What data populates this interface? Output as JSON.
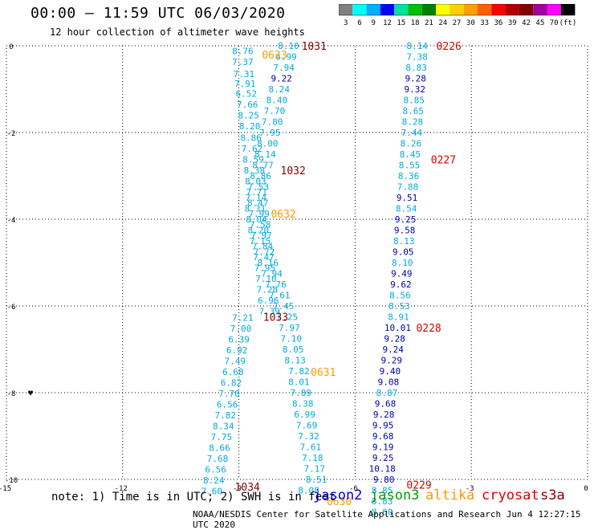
{
  "header": {
    "title": "00:00 – 11:59 UTC 06/03/2020",
    "subtitle": "12 hour collection of altimeter wave heights"
  },
  "legend": {
    "labels": [
      "3",
      "6",
      "9",
      "12",
      "15",
      "18",
      "21",
      "24",
      "27",
      "30",
      "33",
      "36",
      "39",
      "42",
      "45",
      "70",
      "(ft)"
    ],
    "colors": [
      "#808080",
      "#00ffff",
      "#00b0ff",
      "#0000ff",
      "#00e0a0",
      "#00c000",
      "#008000",
      "#ffff00",
      "#ffd000",
      "#ffa000",
      "#ff6000",
      "#ff0000",
      "#b00000",
      "#800000",
      "#a000a0",
      "#ff00ff",
      "#000000"
    ]
  },
  "note": "note: 1) Time is in UTC; 2) SWH is in feet",
  "satellites": [
    {
      "name": "jason2",
      "color": "#0000cc"
    },
    {
      "name": "jason3",
      "color": "#00a000"
    },
    {
      "name": "altika",
      "color": "#ff9900"
    },
    {
      "name": "cryosat",
      "color": "#dd0000"
    },
    {
      "name": "s3a",
      "color": "#880000"
    }
  ],
  "footer": "NOAA/NESDIS Center for Satellite Applications and Research   Jun  4 12:27:15 UTC 2020",
  "chart_data": {
    "type": "scatter",
    "xlim": [
      -15,
      0
    ],
    "ylim": [
      -10,
      0
    ],
    "x_ticks": [
      "-15",
      "-12",
      "-9",
      "-6",
      "-3",
      "0"
    ],
    "y_ticks": [
      "0",
      "-2",
      "-4",
      "-6",
      "-8",
      "-10"
    ],
    "grid": true,
    "colors": {
      "cyan": "#00aadd",
      "navy": "#0000aa"
    },
    "series": [
      {
        "points": [
          {
            "x": -8.9,
            "y": -0.12,
            "v": "8.76",
            "c": "cyan"
          },
          {
            "x": -8.9,
            "y": -0.37,
            "v": "7.37",
            "c": "cyan"
          },
          {
            "x": -8.87,
            "y": -0.65,
            "v": "7.31",
            "c": "cyan"
          },
          {
            "x": -8.84,
            "y": -0.87,
            "v": "7.91",
            "c": "cyan"
          },
          {
            "x": -8.81,
            "y": -1.1,
            "v": "6.52",
            "c": "cyan"
          },
          {
            "x": -8.78,
            "y": -1.35,
            "v": "7.66",
            "c": "cyan"
          },
          {
            "x": -8.75,
            "y": -1.6,
            "v": "8.25",
            "c": "cyan"
          },
          {
            "x": -8.72,
            "y": -1.85,
            "v": "8.20",
            "c": "cyan"
          },
          {
            "x": -8.69,
            "y": -2.12,
            "v": "8.86",
            "c": "cyan"
          },
          {
            "x": -8.66,
            "y": -2.37,
            "v": "7.62",
            "c": "cyan"
          },
          {
            "x": -8.63,
            "y": -2.62,
            "v": "8.59",
            "c": "cyan"
          },
          {
            "x": -8.6,
            "y": -2.87,
            "v": "8.38",
            "c": "cyan"
          },
          {
            "x": -8.57,
            "y": -3.12,
            "v": "8.03",
            "c": "cyan"
          },
          {
            "x": -8.54,
            "y": -3.37,
            "v": "7.71",
            "c": "cyan"
          },
          {
            "x": -8.51,
            "y": -3.62,
            "v": "8.47",
            "c": "cyan"
          },
          {
            "x": -8.48,
            "y": -3.87,
            "v": "7.99",
            "c": "cyan"
          },
          {
            "x": -8.45,
            "y": -4.12,
            "v": "7.58",
            "c": "cyan"
          },
          {
            "x": -8.42,
            "y": -4.37,
            "v": "7.97",
            "c": "cyan"
          },
          {
            "x": -8.39,
            "y": -4.62,
            "v": "7.84",
            "c": "cyan"
          },
          {
            "x": -8.36,
            "y": -4.87,
            "v": "7.47",
            "c": "cyan"
          },
          {
            "x": -8.33,
            "y": -5.12,
            "v": "7.95",
            "c": "cyan"
          },
          {
            "x": -8.3,
            "y": -5.37,
            "v": "7.10",
            "c": "cyan"
          },
          {
            "x": -8.27,
            "y": -5.62,
            "v": "7.28",
            "c": "cyan"
          },
          {
            "x": -8.24,
            "y": -5.87,
            "v": "6.96",
            "c": "cyan"
          },
          {
            "x": -8.21,
            "y": -6.12,
            "v": "7.39",
            "c": "cyan"
          },
          {
            "x": -8.9,
            "y": -6.27,
            "v": "7.21",
            "c": "cyan"
          },
          {
            "x": -8.95,
            "y": -6.52,
            "v": "7.00",
            "c": "cyan"
          },
          {
            "x": -9.0,
            "y": -6.77,
            "v": "6.39",
            "c": "cyan"
          },
          {
            "x": -9.05,
            "y": -7.02,
            "v": "6.92",
            "c": "cyan"
          },
          {
            "x": -9.1,
            "y": -7.27,
            "v": "7.49",
            "c": "cyan"
          },
          {
            "x": -9.15,
            "y": -7.52,
            "v": "6.68",
            "c": "cyan"
          },
          {
            "x": -9.2,
            "y": -7.77,
            "v": "6.82",
            "c": "cyan"
          },
          {
            "x": -9.25,
            "y": -8.02,
            "v": "7.70",
            "c": "cyan"
          },
          {
            "x": -9.3,
            "y": -8.27,
            "v": "6.56",
            "c": "cyan"
          },
          {
            "x": -9.35,
            "y": -8.52,
            "v": "7.82",
            "c": "cyan"
          },
          {
            "x": -9.4,
            "y": -8.77,
            "v": "8.34",
            "c": "cyan"
          },
          {
            "x": -9.45,
            "y": -9.02,
            "v": "7.75",
            "c": "cyan"
          },
          {
            "x": -9.5,
            "y": -9.27,
            "v": "8.66",
            "c": "cyan"
          },
          {
            "x": -9.55,
            "y": -9.52,
            "v": "7.68",
            "c": "cyan"
          },
          {
            "x": -9.6,
            "y": -9.77,
            "v": "6.56",
            "c": "cyan"
          },
          {
            "x": -9.65,
            "y": -10.02,
            "v": "8.24",
            "c": "cyan"
          },
          {
            "x": -9.7,
            "y": -10.27,
            "v": "7.60",
            "c": "cyan"
          }
        ]
      },
      {
        "points": [
          {
            "x": -7.72,
            "y": 0.0,
            "v": "8.10",
            "c": "cyan"
          },
          {
            "x": -7.78,
            "y": -0.25,
            "v": "6.99",
            "c": "cyan"
          },
          {
            "x": -7.84,
            "y": -0.5,
            "v": "7.94",
            "c": "cyan"
          },
          {
            "x": -7.9,
            "y": -0.75,
            "v": "9.22",
            "c": "navy"
          },
          {
            "x": -7.96,
            "y": -1.0,
            "v": "8.24",
            "c": "cyan"
          },
          {
            "x": -8.02,
            "y": -1.25,
            "v": "8.40",
            "c": "cyan"
          },
          {
            "x": -8.08,
            "y": -1.5,
            "v": "7.70",
            "c": "cyan"
          },
          {
            "x": -8.14,
            "y": -1.75,
            "v": "7.80",
            "c": "cyan"
          },
          {
            "x": -8.2,
            "y": -2.0,
            "v": "7.95",
            "c": "cyan"
          },
          {
            "x": -8.26,
            "y": -2.25,
            "v": "8.00",
            "c": "cyan"
          },
          {
            "x": -8.32,
            "y": -2.5,
            "v": "8.14",
            "c": "cyan"
          },
          {
            "x": -8.38,
            "y": -2.75,
            "v": "8.77",
            "c": "cyan"
          },
          {
            "x": -8.44,
            "y": -3.0,
            "v": "8.86",
            "c": "cyan"
          },
          {
            "x": -8.5,
            "y": -3.25,
            "v": "7.53",
            "c": "cyan"
          },
          {
            "x": -8.56,
            "y": -3.5,
            "v": "7.14",
            "c": "cyan"
          },
          {
            "x": -8.58,
            "y": -3.75,
            "v": "8.31",
            "c": "cyan"
          },
          {
            "x": -8.55,
            "y": -4.0,
            "v": "8.04",
            "c": "cyan"
          },
          {
            "x": -8.5,
            "y": -4.25,
            "v": "8.20",
            "c": "cyan"
          },
          {
            "x": -8.45,
            "y": -4.5,
            "v": "7.15",
            "c": "cyan"
          },
          {
            "x": -8.35,
            "y": -4.75,
            "v": "7.72",
            "c": "cyan"
          },
          {
            "x": -8.25,
            "y": -5.0,
            "v": "8.16",
            "c": "cyan"
          },
          {
            "x": -8.15,
            "y": -5.25,
            "v": "7.94",
            "c": "cyan"
          },
          {
            "x": -8.05,
            "y": -5.5,
            "v": "7.76",
            "c": "cyan"
          },
          {
            "x": -7.95,
            "y": -5.75,
            "v": "7.61",
            "c": "cyan"
          },
          {
            "x": -7.85,
            "y": -6.0,
            "v": "7.45",
            "c": "cyan"
          },
          {
            "x": -7.75,
            "y": -6.25,
            "v": "7.25",
            "c": "cyan"
          },
          {
            "x": -7.7,
            "y": -6.5,
            "v": "7.97",
            "c": "cyan"
          },
          {
            "x": -7.65,
            "y": -6.75,
            "v": "7.10",
            "c": "cyan"
          },
          {
            "x": -7.6,
            "y": -7.0,
            "v": "8.05",
            "c": "cyan"
          },
          {
            "x": -7.55,
            "y": -7.25,
            "v": "8.13",
            "c": "cyan"
          },
          {
            "x": -7.45,
            "y": -7.5,
            "v": "7.82",
            "c": "cyan"
          },
          {
            "x": -7.45,
            "y": -7.75,
            "v": "8.01",
            "c": "cyan"
          },
          {
            "x": -7.4,
            "y": -8.0,
            "v": "7.89",
            "c": "cyan"
          },
          {
            "x": -7.35,
            "y": -8.25,
            "v": "8.38",
            "c": "cyan"
          },
          {
            "x": -7.3,
            "y": -8.5,
            "v": "6.99",
            "c": "cyan"
          },
          {
            "x": -7.25,
            "y": -8.75,
            "v": "7.69",
            "c": "cyan"
          },
          {
            "x": -7.2,
            "y": -9.0,
            "v": "7.32",
            "c": "cyan"
          },
          {
            "x": -7.15,
            "y": -9.25,
            "v": "7.61",
            "c": "cyan"
          },
          {
            "x": -7.1,
            "y": -9.5,
            "v": "7.18",
            "c": "cyan"
          },
          {
            "x": -7.05,
            "y": -9.75,
            "v": "7.17",
            "c": "cyan"
          },
          {
            "x": -7.0,
            "y": -10.0,
            "v": "8.51",
            "c": "cyan"
          },
          {
            "x": -7.2,
            "y": -10.25,
            "v": "8.08",
            "c": "cyan"
          }
        ]
      },
      {
        "points": [
          {
            "x": -4.4,
            "y": 0.0,
            "v": "8.14",
            "c": "cyan"
          },
          {
            "x": -4.4,
            "y": -0.25,
            "v": "7.38",
            "c": "cyan"
          },
          {
            "x": -4.42,
            "y": -0.5,
            "v": "8.83",
            "c": "cyan"
          },
          {
            "x": -4.44,
            "y": -0.75,
            "v": "9.28",
            "c": "navy"
          },
          {
            "x": -4.46,
            "y": -1.0,
            "v": "9.32",
            "c": "navy"
          },
          {
            "x": -4.48,
            "y": -1.25,
            "v": "8.85",
            "c": "cyan"
          },
          {
            "x": -4.5,
            "y": -1.5,
            "v": "8.65",
            "c": "cyan"
          },
          {
            "x": -4.52,
            "y": -1.75,
            "v": "8.28",
            "c": "cyan"
          },
          {
            "x": -4.54,
            "y": -2.0,
            "v": "7.44",
            "c": "cyan"
          },
          {
            "x": -4.56,
            "y": -2.25,
            "v": "8.26",
            "c": "cyan"
          },
          {
            "x": -4.58,
            "y": -2.5,
            "v": "8.45",
            "c": "cyan"
          },
          {
            "x": -4.6,
            "y": -2.75,
            "v": "8.55",
            "c": "cyan"
          },
          {
            "x": -4.62,
            "y": -3.0,
            "v": "8.36",
            "c": "cyan"
          },
          {
            "x": -4.64,
            "y": -3.25,
            "v": "7.88",
            "c": "cyan"
          },
          {
            "x": -4.66,
            "y": -3.5,
            "v": "9.51",
            "c": "navy"
          },
          {
            "x": -4.68,
            "y": -3.75,
            "v": "8.54",
            "c": "cyan"
          },
          {
            "x": -4.7,
            "y": -4.0,
            "v": "9.25",
            "c": "navy"
          },
          {
            "x": -4.72,
            "y": -4.25,
            "v": "9.58",
            "c": "navy"
          },
          {
            "x": -4.74,
            "y": -4.5,
            "v": "8.13",
            "c": "cyan"
          },
          {
            "x": -4.76,
            "y": -4.75,
            "v": "9.05",
            "c": "navy"
          },
          {
            "x": -4.78,
            "y": -5.0,
            "v": "8.10",
            "c": "cyan"
          },
          {
            "x": -4.8,
            "y": -5.25,
            "v": "9.49",
            "c": "navy"
          },
          {
            "x": -4.82,
            "y": -5.5,
            "v": "9.62",
            "c": "navy"
          },
          {
            "x": -4.84,
            "y": -5.75,
            "v": "8.56",
            "c": "cyan"
          },
          {
            "x": -4.86,
            "y": -6.0,
            "v": "8.53",
            "c": "cyan"
          },
          {
            "x": -4.88,
            "y": -6.25,
            "v": "8.91",
            "c": "cyan"
          },
          {
            "x": -4.9,
            "y": -6.5,
            "v": "10.01",
            "c": "navy"
          },
          {
            "x": -4.98,
            "y": -6.75,
            "v": "9.28",
            "c": "navy"
          },
          {
            "x": -5.02,
            "y": -7.0,
            "v": "9.24",
            "c": "navy"
          },
          {
            "x": -5.06,
            "y": -7.25,
            "v": "9.29",
            "c": "navy"
          },
          {
            "x": -5.1,
            "y": -7.5,
            "v": "9.40",
            "c": "navy"
          },
          {
            "x": -5.14,
            "y": -7.75,
            "v": "9.08",
            "c": "navy"
          },
          {
            "x": -5.18,
            "y": -8.0,
            "v": "8.87",
            "c": "cyan"
          },
          {
            "x": -5.22,
            "y": -8.25,
            "v": "9.68",
            "c": "navy"
          },
          {
            "x": -5.26,
            "y": -8.5,
            "v": "9.28",
            "c": "navy"
          },
          {
            "x": -5.28,
            "y": -8.75,
            "v": "9.95",
            "c": "navy"
          },
          {
            "x": -5.28,
            "y": -9.0,
            "v": "9.68",
            "c": "navy"
          },
          {
            "x": -5.28,
            "y": -9.25,
            "v": "9.19",
            "c": "navy"
          },
          {
            "x": -5.28,
            "y": -9.5,
            "v": "9.25",
            "c": "navy"
          },
          {
            "x": -5.3,
            "y": -9.75,
            "v": "10.18",
            "c": "navy"
          },
          {
            "x": -5.26,
            "y": -10.0,
            "v": "9.80",
            "c": "navy"
          },
          {
            "x": -5.3,
            "y": -10.25,
            "v": "8.85",
            "c": "cyan"
          },
          {
            "x": -5.3,
            "y": -10.5,
            "v": "8.83",
            "c": "cyan"
          },
          {
            "x": -5.3,
            "y": -10.75,
            "v": "8.60",
            "c": "cyan"
          }
        ]
      }
    ],
    "annotations": [
      {
        "x": -8.08,
        "y": -0.2,
        "text": "0633",
        "color": "#ff9900"
      },
      {
        "x": -7.06,
        "y": 0.0,
        "text": "1031",
        "color": "#880000"
      },
      {
        "x": -3.58,
        "y": 0.0,
        "text": "0226",
        "color": "#dd0000"
      },
      {
        "x": -3.72,
        "y": -2.62,
        "text": "0227",
        "color": "#dd0000"
      },
      {
        "x": -7.6,
        "y": -2.87,
        "text": "1032",
        "color": "#880000"
      },
      {
        "x": -7.85,
        "y": -3.87,
        "text": "0632",
        "color": "#ff9900"
      },
      {
        "x": -8.05,
        "y": -6.25,
        "text": "1033",
        "color": "#880000"
      },
      {
        "x": -4.1,
        "y": -6.5,
        "text": "0228",
        "color": "#dd0000"
      },
      {
        "x": -6.82,
        "y": -7.52,
        "text": "0631",
        "color": "#ff9900"
      },
      {
        "x": -4.35,
        "y": -10.12,
        "text": "0229",
        "color": "#dd0000"
      },
      {
        "x": -8.78,
        "y": -10.17,
        "text": "1034",
        "color": "#880000"
      },
      {
        "x": -6.41,
        "y": -10.5,
        "text": "0630",
        "color": "#ff9900"
      }
    ]
  }
}
